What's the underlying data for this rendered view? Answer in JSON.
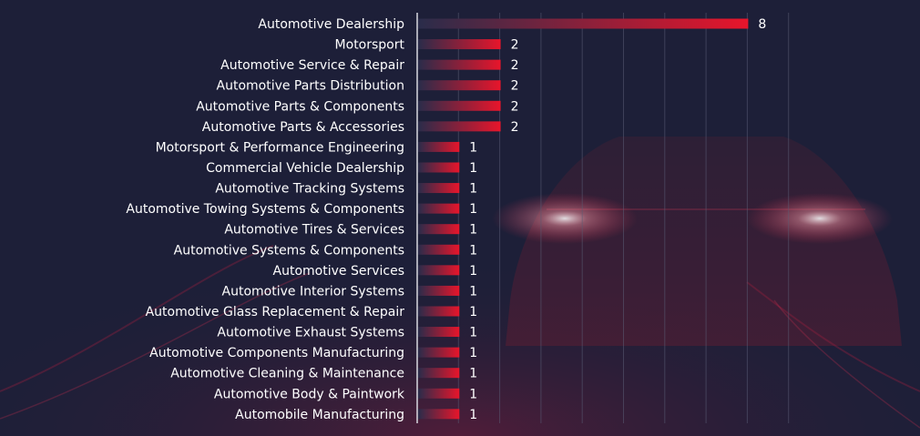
{
  "chart_data": {
    "type": "bar",
    "orientation": "horizontal",
    "title": "",
    "xlabel": "",
    "ylabel": "",
    "categories": [
      "Automotive Dealership",
      "Motorsport",
      "Automotive Service & Repair",
      "Automotive Parts Distribution",
      "Automotive Parts & Components",
      "Automotive Parts & Accessories",
      "Motorsport & Performance Engineering",
      "Commercial Vehicle Dealership",
      "Automotive Tracking Systems",
      "Automotive Towing Systems & Components",
      "Automotive Tires & Services",
      "Automotive Systems & Components",
      "Automotive Services",
      "Automotive Interior Systems",
      "Automotive Glass Replacement & Repair",
      "Automotive Exhaust Systems",
      "Automotive Components Manufacturing",
      "Automotive Cleaning & Maintenance",
      "Automotive Body & Paintwork",
      "Automobile Manufacturing"
    ],
    "values": [
      8,
      2,
      2,
      2,
      2,
      2,
      1,
      1,
      1,
      1,
      1,
      1,
      1,
      1,
      1,
      1,
      1,
      1,
      1,
      1
    ],
    "xlim": [
      0,
      9
    ],
    "grid": true,
    "data_labels": true,
    "colors": {
      "bar_start": "#2a2c4a",
      "bar_end": "#e8152b",
      "background": "#1d1f38",
      "gridline": "#5a5c74",
      "axis": "#d8d8e0",
      "text": "#ffffff"
    }
  }
}
